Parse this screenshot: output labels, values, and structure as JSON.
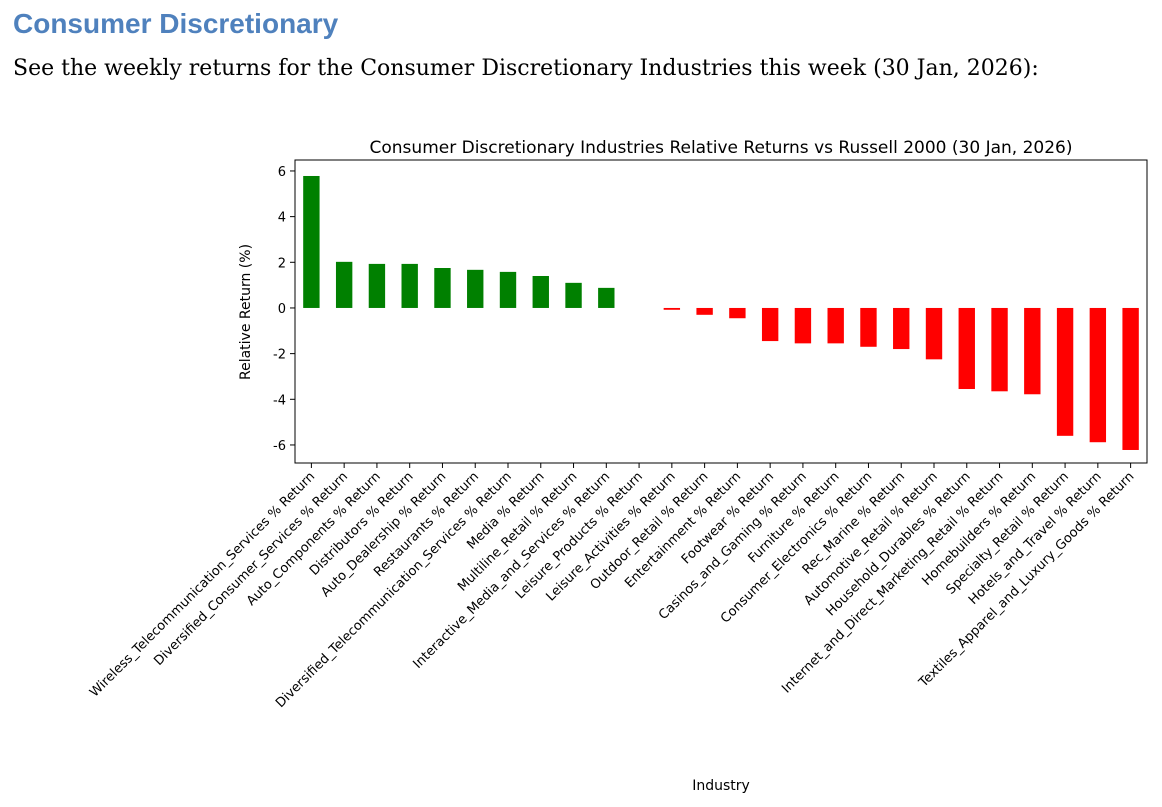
{
  "heading": "Consumer Discretionary",
  "intro": "See the weekly returns for the Consumer Discretionary Industries this week (30 Jan, 2026):",
  "colors": {
    "positive": "#008000",
    "negative": "#ff0000",
    "heading": "#4f81bd"
  },
  "chart_data": {
    "type": "bar",
    "title": "Consumer Discretionary Industries Relative Returns vs Russell 2000 (30 Jan, 2026)",
    "xlabel": "Industry",
    "ylabel": "Relative Return (%)",
    "ylim": [
      -6.79,
      6.48
    ],
    "yticks": [
      -6,
      -4,
      -2,
      0,
      2,
      4,
      6
    ],
    "grid": false,
    "categories": [
      "Wireless_Telecommunication_Services % Return",
      "Diversified_Consumer_Services % Return",
      "Auto_Components % Return",
      "Distributors % Return",
      "Auto_Dealership % Return",
      "Restaurants % Return",
      "Diversified_Telecommunication_Services % Return",
      "Media % Return",
      "Multiline_Retail % Return",
      "Interactive_Media_and_Services % Return",
      "Leisure_Products % Return",
      "Leisure_Activities % Return",
      "Outdoor_Retail % Return",
      "Entertainment % Return",
      "Footwear % Return",
      "Casinos_and_Gaming % Return",
      "Furniture % Return",
      "Consumer_Electronics % Return",
      "Rec_Marine % Return",
      "Automotive_Retail % Return",
      "Household_Durables % Return",
      "Internet_and_Direct_Marketing_Retail % Return",
      "Homebuilders % Return",
      "Specialty_Retail % Return",
      "Hotels_and_Travel % Return",
      "Textiles_Apparel_and_Luxury_Goods % Return"
    ],
    "values": [
      5.78,
      2.02,
      1.93,
      1.93,
      1.75,
      1.67,
      1.58,
      1.4,
      1.1,
      0.88,
      0.0,
      -0.08,
      -0.3,
      -0.45,
      -1.45,
      -1.55,
      -1.55,
      -1.7,
      -1.8,
      -2.25,
      -3.55,
      -3.65,
      -3.78,
      -5.6,
      -5.88,
      -6.22
    ]
  }
}
